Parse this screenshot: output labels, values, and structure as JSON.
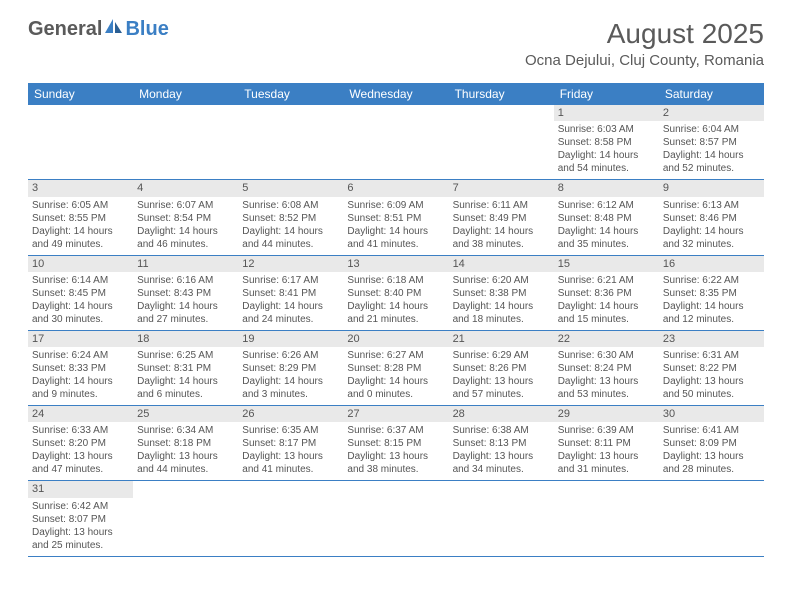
{
  "logo": {
    "general": "General",
    "blue": "Blue"
  },
  "title": "August 2025",
  "location": "Ocna Dejului, Cluj County, Romania",
  "colors": {
    "header_bg": "#3b7fc4",
    "header_text": "#ffffff",
    "daynum_bg": "#e9e9e9",
    "text": "#555555",
    "border": "#3b7fc4"
  },
  "weekdays": [
    "Sunday",
    "Monday",
    "Tuesday",
    "Wednesday",
    "Thursday",
    "Friday",
    "Saturday"
  ],
  "weeks": [
    [
      null,
      null,
      null,
      null,
      null,
      {
        "n": "1",
        "sr": "6:03 AM",
        "ss": "8:58 PM",
        "dl": "14 hours and 54 minutes."
      },
      {
        "n": "2",
        "sr": "6:04 AM",
        "ss": "8:57 PM",
        "dl": "14 hours and 52 minutes."
      }
    ],
    [
      {
        "n": "3",
        "sr": "6:05 AM",
        "ss": "8:55 PM",
        "dl": "14 hours and 49 minutes."
      },
      {
        "n": "4",
        "sr": "6:07 AM",
        "ss": "8:54 PM",
        "dl": "14 hours and 46 minutes."
      },
      {
        "n": "5",
        "sr": "6:08 AM",
        "ss": "8:52 PM",
        "dl": "14 hours and 44 minutes."
      },
      {
        "n": "6",
        "sr": "6:09 AM",
        "ss": "8:51 PM",
        "dl": "14 hours and 41 minutes."
      },
      {
        "n": "7",
        "sr": "6:11 AM",
        "ss": "8:49 PM",
        "dl": "14 hours and 38 minutes."
      },
      {
        "n": "8",
        "sr": "6:12 AM",
        "ss": "8:48 PM",
        "dl": "14 hours and 35 minutes."
      },
      {
        "n": "9",
        "sr": "6:13 AM",
        "ss": "8:46 PM",
        "dl": "14 hours and 32 minutes."
      }
    ],
    [
      {
        "n": "10",
        "sr": "6:14 AM",
        "ss": "8:45 PM",
        "dl": "14 hours and 30 minutes."
      },
      {
        "n": "11",
        "sr": "6:16 AM",
        "ss": "8:43 PM",
        "dl": "14 hours and 27 minutes."
      },
      {
        "n": "12",
        "sr": "6:17 AM",
        "ss": "8:41 PM",
        "dl": "14 hours and 24 minutes."
      },
      {
        "n": "13",
        "sr": "6:18 AM",
        "ss": "8:40 PM",
        "dl": "14 hours and 21 minutes."
      },
      {
        "n": "14",
        "sr": "6:20 AM",
        "ss": "8:38 PM",
        "dl": "14 hours and 18 minutes."
      },
      {
        "n": "15",
        "sr": "6:21 AM",
        "ss": "8:36 PM",
        "dl": "14 hours and 15 minutes."
      },
      {
        "n": "16",
        "sr": "6:22 AM",
        "ss": "8:35 PM",
        "dl": "14 hours and 12 minutes."
      }
    ],
    [
      {
        "n": "17",
        "sr": "6:24 AM",
        "ss": "8:33 PM",
        "dl": "14 hours and 9 minutes."
      },
      {
        "n": "18",
        "sr": "6:25 AM",
        "ss": "8:31 PM",
        "dl": "14 hours and 6 minutes."
      },
      {
        "n": "19",
        "sr": "6:26 AM",
        "ss": "8:29 PM",
        "dl": "14 hours and 3 minutes."
      },
      {
        "n": "20",
        "sr": "6:27 AM",
        "ss": "8:28 PM",
        "dl": "14 hours and 0 minutes."
      },
      {
        "n": "21",
        "sr": "6:29 AM",
        "ss": "8:26 PM",
        "dl": "13 hours and 57 minutes."
      },
      {
        "n": "22",
        "sr": "6:30 AM",
        "ss": "8:24 PM",
        "dl": "13 hours and 53 minutes."
      },
      {
        "n": "23",
        "sr": "6:31 AM",
        "ss": "8:22 PM",
        "dl": "13 hours and 50 minutes."
      }
    ],
    [
      {
        "n": "24",
        "sr": "6:33 AM",
        "ss": "8:20 PM",
        "dl": "13 hours and 47 minutes."
      },
      {
        "n": "25",
        "sr": "6:34 AM",
        "ss": "8:18 PM",
        "dl": "13 hours and 44 minutes."
      },
      {
        "n": "26",
        "sr": "6:35 AM",
        "ss": "8:17 PM",
        "dl": "13 hours and 41 minutes."
      },
      {
        "n": "27",
        "sr": "6:37 AM",
        "ss": "8:15 PM",
        "dl": "13 hours and 38 minutes."
      },
      {
        "n": "28",
        "sr": "6:38 AM",
        "ss": "8:13 PM",
        "dl": "13 hours and 34 minutes."
      },
      {
        "n": "29",
        "sr": "6:39 AM",
        "ss": "8:11 PM",
        "dl": "13 hours and 31 minutes."
      },
      {
        "n": "30",
        "sr": "6:41 AM",
        "ss": "8:09 PM",
        "dl": "13 hours and 28 minutes."
      }
    ],
    [
      {
        "n": "31",
        "sr": "6:42 AM",
        "ss": "8:07 PM",
        "dl": "13 hours and 25 minutes."
      },
      null,
      null,
      null,
      null,
      null,
      null
    ]
  ],
  "labels": {
    "sunrise": "Sunrise: ",
    "sunset": "Sunset: ",
    "daylight": "Daylight: "
  }
}
